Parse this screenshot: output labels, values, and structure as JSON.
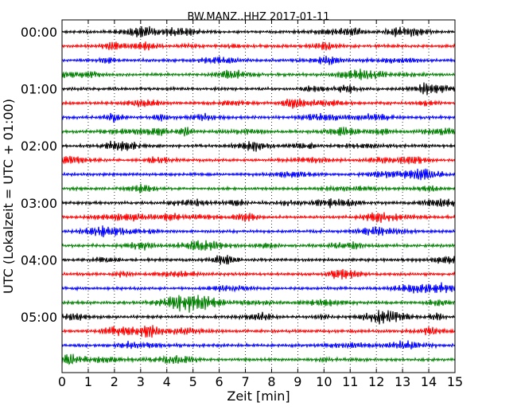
{
  "chart_data": {
    "type": "line",
    "title": "BW.MANZ..HHZ 2017-01-11",
    "xlabel": "Zeit  [min]",
    "ylabel": "UTC (Lokalzeit = UTC + 01:00)",
    "xlim": [
      0,
      15
    ],
    "x_ticks": [
      0,
      1,
      2,
      3,
      4,
      5,
      6,
      7,
      8,
      9,
      10,
      11,
      12,
      13,
      14,
      15
    ],
    "x_tick_labels": [
      "0",
      "1",
      "2",
      "3",
      "4",
      "5",
      "6",
      "7",
      "8",
      "9",
      "10",
      "11",
      "12",
      "13",
      "14",
      "15"
    ],
    "y_tick_labels": [
      "00:00",
      "01:00",
      "02:00",
      "03:00",
      "04:00",
      "05:00"
    ],
    "y_tick_rows": [
      0,
      4,
      8,
      12,
      16,
      20
    ],
    "grid": "vertical dotted lines at each minute",
    "trace_interval_minutes": 15,
    "trace_colors": [
      "#000000",
      "#ff0000",
      "#0000ff",
      "#008000"
    ],
    "rows": [
      {
        "start": "00:00"
      },
      {
        "start": "00:15"
      },
      {
        "start": "00:30"
      },
      {
        "start": "00:45"
      },
      {
        "start": "01:00"
      },
      {
        "start": "01:15"
      },
      {
        "start": "01:30"
      },
      {
        "start": "01:45"
      },
      {
        "start": "02:00"
      },
      {
        "start": "02:15"
      },
      {
        "start": "02:30"
      },
      {
        "start": "02:45"
      },
      {
        "start": "03:00"
      },
      {
        "start": "03:15"
      },
      {
        "start": "03:30"
      },
      {
        "start": "03:45"
      },
      {
        "start": "04:00"
      },
      {
        "start": "04:15"
      },
      {
        "start": "04:30"
      },
      {
        "start": "04:45"
      },
      {
        "start": "05:00"
      },
      {
        "start": "05:15"
      },
      {
        "start": "05:30"
      },
      {
        "start": "05:45"
      }
    ]
  }
}
